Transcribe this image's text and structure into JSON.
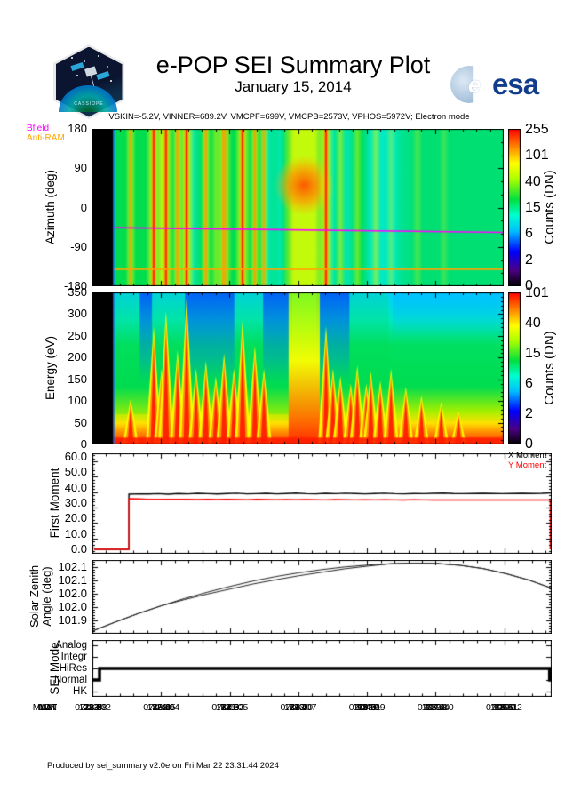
{
  "header": {
    "title": "e-POP SEI Summary Plot",
    "date": "January 15, 2014",
    "patch_text": "CASSIOPE",
    "esa_label": "esa"
  },
  "settings_line": "VSKIN=-5.2V, VINNER=689.2V, VMCPF=699V, VMCPB=2573V, VPHOS=5972V; Electron mode",
  "footer": "Produced by sei_summary v2.0e on Fri Mar 22 23:31:44 2024",
  "bottom_axis": {
    "rows": [
      {
        "label": "UT",
        "values": [
          "07:23:02",
          "07:24:04",
          "07:25:05",
          "07:26:07",
          "07:27:09",
          "07:28:10",
          "07:29:12"
        ]
      },
      {
        "label": "ALT",
        "values": [
          "1293.8",
          "1268.5",
          "1241.2",
          "1213.0",
          "1183.1",
          "1152.4",
          "1120.1"
        ]
      },
      {
        "label": "LAT",
        "values": [
          "78.5",
          "80.2",
          "81.0",
          "80.7",
          "79.3",
          "77.2",
          "74.6"
        ]
      },
      {
        "label": "LON",
        "values": [
          "33.7",
          "48.4",
          "67.5",
          "87.7",
          "104.8",
          "117.3",
          "126.0"
        ]
      },
      {
        "label": "MLAT",
        "values": [
          "72.9",
          "72.9",
          "72.3",
          "71.1",
          "69.5",
          "67.4",
          "65.1"
        ]
      },
      {
        "label": "MLT",
        "values": [
          "11.8",
          "12.6",
          "13.3",
          "14.0",
          "14.6",
          "15.0",
          "15.5"
        ]
      }
    ]
  },
  "chart_data": [
    {
      "type": "heatmap",
      "name": "azimuth_spectrogram",
      "ylabel": "Azimuth (deg)",
      "yticks": [
        "180",
        "90",
        "0",
        "-90",
        "-180"
      ],
      "ylim": [
        -180,
        180
      ],
      "colorbar": {
        "label": "Counts (DN)",
        "ticks": [
          "255",
          "101",
          "40",
          "15",
          "6",
          "2",
          "0"
        ]
      },
      "legend": [
        {
          "label": "Bfield",
          "color": "#ff00ff"
        },
        {
          "label": "Anti-RAM",
          "color": "#ffa500"
        }
      ],
      "bfield_line_deg": [
        -46,
        -57
      ],
      "antiram_line_deg": -141,
      "data_gap_end_frac": 0.05,
      "stripes": [
        [
          0.093,
          2,
          0.7
        ],
        [
          0.149,
          3,
          0.95
        ],
        [
          0.168,
          2,
          0.6
        ],
        [
          0.179,
          3,
          0.9
        ],
        [
          0.207,
          2,
          0.85
        ],
        [
          0.229,
          3,
          1.0
        ],
        [
          0.276,
          2,
          0.8
        ],
        [
          0.3,
          2,
          0.5
        ],
        [
          0.32,
          3,
          0.85
        ],
        [
          0.365,
          3,
          0.95
        ],
        [
          0.395,
          2,
          0.8
        ],
        [
          0.417,
          2,
          0.7
        ],
        [
          0.568,
          3,
          0.9
        ],
        [
          0.603,
          2,
          0.5
        ],
        [
          0.644,
          2,
          0.45
        ],
        [
          0.689,
          2,
          0.5
        ],
        [
          0.726,
          2,
          0.35
        ],
        [
          0.79,
          2,
          0.3
        ],
        [
          0.855,
          2,
          0.25
        ]
      ],
      "cyan_cols": [
        [
          0.245,
          0.012
        ],
        [
          0.43,
          0.012
        ],
        [
          0.455,
          0.01
        ],
        [
          0.585,
          0.012
        ],
        [
          0.62,
          0.014
        ],
        [
          0.675,
          0.012
        ],
        [
          0.705,
          0.02
        ],
        [
          0.73,
          0.03
        ]
      ],
      "big_column": [
        0.477,
        0.553
      ]
    },
    {
      "type": "heatmap",
      "name": "energy_spectrogram",
      "ylabel": "Energy (eV)",
      "yticks": [
        "350",
        "300",
        "250",
        "200",
        "150",
        "100",
        "50",
        "0"
      ],
      "ylim": [
        0,
        350
      ],
      "colorbar": {
        "label": "Counts (DN)",
        "ticks": [
          "101",
          "40",
          "15",
          "6",
          "2",
          "0"
        ]
      },
      "data_gap_end_frac": 0.05,
      "plumes": [
        [
          0.093,
          0.3
        ],
        [
          0.149,
          0.78
        ],
        [
          0.168,
          0.5
        ],
        [
          0.179,
          0.88
        ],
        [
          0.207,
          0.62
        ],
        [
          0.229,
          0.97
        ],
        [
          0.252,
          0.5
        ],
        [
          0.276,
          0.55
        ],
        [
          0.3,
          0.45
        ],
        [
          0.32,
          0.6
        ],
        [
          0.344,
          0.5
        ],
        [
          0.365,
          0.82
        ],
        [
          0.395,
          0.65
        ],
        [
          0.417,
          0.5
        ],
        [
          0.568,
          0.78
        ],
        [
          0.585,
          0.5
        ],
        [
          0.603,
          0.45
        ],
        [
          0.628,
          0.4
        ],
        [
          0.644,
          0.52
        ],
        [
          0.666,
          0.4
        ],
        [
          0.677,
          0.48
        ],
        [
          0.7,
          0.42
        ],
        [
          0.726,
          0.5
        ],
        [
          0.762,
          0.38
        ],
        [
          0.8,
          0.32
        ],
        [
          0.848,
          0.28
        ],
        [
          0.89,
          0.22
        ]
      ],
      "blue_cols": [
        [
          0.115,
          0.145
        ],
        [
          0.225,
          0.345
        ],
        [
          0.415,
          0.485
        ],
        [
          0.545,
          0.625
        ]
      ],
      "big_column": [
        0.477,
        0.553
      ]
    },
    {
      "type": "line",
      "name": "first_moment",
      "ylabel": "First Moment",
      "yticks": [
        "60.0",
        "50.0",
        "40.0",
        "30.0",
        "20.0",
        "10.0",
        "0.0"
      ],
      "ylim": [
        0,
        60
      ],
      "legend": [
        {
          "label": "X Moment",
          "color": "#000000"
        },
        {
          "label": "Y Moment",
          "color": "#ff0000"
        }
      ],
      "series": [
        {
          "name": "X Moment",
          "color": "#000000",
          "rise_x": 0.0795,
          "end_drop": false,
          "values": [
            35.8,
            36.0,
            35.9,
            36.1,
            35.8,
            36.2,
            36.0,
            36.3,
            36.1,
            35.9,
            36.2,
            36.4,
            36.0,
            36.1,
            36.3,
            36.0,
            36.2,
            36.5,
            36.1,
            36.0,
            36.3,
            36.1,
            36.4,
            36.2,
            36.0,
            36.2,
            36.4,
            36.1,
            36.0,
            36.2,
            36.1,
            36.3,
            36.5,
            36.2,
            36.1,
            36.2,
            36.3,
            36.2,
            36.1,
            36.2,
            36.3,
            36.2,
            36.3,
            36.6
          ]
        },
        {
          "name": "Y Moment",
          "color": "#ff0000",
          "rise_x": 0.0795,
          "end_drop": true,
          "values": [
            32.9,
            32.7,
            32.5,
            32.5,
            32.4,
            32.5,
            32.4,
            32.3,
            32.4,
            32.3,
            32.4,
            32.3,
            32.2,
            32.4,
            32.3,
            32.2,
            32.3,
            32.2,
            32.3,
            32.2,
            32.1,
            32.3,
            32.2,
            32.1,
            32.2,
            32.1,
            32.2,
            32.1,
            32.0,
            32.2,
            32.1,
            32.0,
            32.1,
            32.0,
            32.1,
            32.0,
            32.1,
            32.0,
            32.1,
            32.0,
            32.0,
            32.1,
            32.0,
            32.0
          ]
        }
      ]
    },
    {
      "type": "line",
      "name": "solar_zenith_angle",
      "ylabel": [
        "Solar Zenith",
        "Angle (deg)"
      ],
      "yticks": [
        "102.1",
        "102.1",
        "102.0",
        "102.0",
        "101.9"
      ],
      "ylim": [
        101.85,
        102.127
      ],
      "curves": [
        [
          101.86,
          101.894,
          101.926,
          101.955,
          101.982,
          102.006,
          102.028,
          102.048,
          102.065,
          102.079,
          102.091,
          102.101,
          102.108,
          102.113,
          102.115,
          102.114,
          102.107,
          102.095,
          102.076,
          102.052,
          102.021
        ],
        [
          101.86,
          101.894,
          101.926,
          101.955,
          101.978,
          101.999,
          102.018,
          102.037,
          102.053,
          102.068,
          102.081,
          102.094,
          102.104,
          102.113,
          102.115,
          102.114,
          102.107,
          102.095,
          102.076,
          102.052,
          102.021
        ]
      ]
    },
    {
      "type": "step",
      "name": "sei_mode",
      "ylabel": "SEI Mode",
      "categories": [
        "Analog",
        "Integr",
        "HiRes",
        "Normal",
        "HK"
      ],
      "segments": [
        [
          0,
          3
        ],
        [
          0.0155,
          3
        ],
        [
          0.0155,
          2
        ],
        [
          0.9955,
          2
        ],
        [
          0.9955,
          3
        ],
        [
          1,
          3
        ]
      ]
    }
  ]
}
